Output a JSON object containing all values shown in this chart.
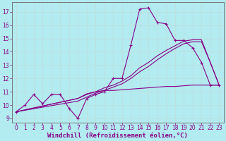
{
  "xlabel": "Windchill (Refroidissement éolien,°C)",
  "background_color": "#b2ebf0",
  "grid_color": "#c8e8e8",
  "line_color": "#880088",
  "xlim": [
    -0.5,
    23.5
  ],
  "ylim": [
    8.7,
    17.7
  ],
  "yticks": [
    9,
    10,
    11,
    12,
    13,
    14,
    15,
    16,
    17
  ],
  "xticks": [
    0,
    1,
    2,
    3,
    4,
    5,
    6,
    7,
    8,
    9,
    10,
    11,
    12,
    13,
    14,
    15,
    16,
    17,
    18,
    19,
    20,
    21,
    22,
    23
  ],
  "curve1_x": [
    0,
    1,
    2,
    3,
    4,
    5,
    6,
    7,
    8,
    9,
    10,
    11,
    12,
    13,
    14,
    15,
    16,
    17,
    18,
    19,
    20,
    21,
    22,
    23
  ],
  "curve1_y": [
    9.5,
    10.0,
    10.8,
    10.1,
    10.8,
    10.8,
    9.75,
    9.0,
    10.5,
    10.8,
    11.0,
    12.0,
    12.0,
    14.5,
    17.2,
    17.3,
    16.2,
    16.1,
    14.85,
    14.85,
    14.3,
    13.2,
    11.5,
    11.5
  ],
  "curve2_x": [
    0,
    7,
    8,
    9,
    10,
    11,
    12,
    13,
    14,
    15,
    16,
    17,
    18,
    19,
    20,
    21,
    22,
    23
  ],
  "curve2_y": [
    9.5,
    10.5,
    10.8,
    11.0,
    11.3,
    11.5,
    11.8,
    12.2,
    12.8,
    13.2,
    13.7,
    14.1,
    14.45,
    14.8,
    14.9,
    14.9,
    13.2,
    11.5
  ],
  "curve3_x": [
    0,
    7,
    8,
    9,
    10,
    11,
    12,
    13,
    14,
    15,
    16,
    17,
    18,
    19,
    20,
    21,
    22,
    23
  ],
  "curve3_y": [
    9.5,
    10.3,
    10.6,
    10.9,
    11.1,
    11.35,
    11.6,
    12.0,
    12.5,
    12.9,
    13.4,
    13.85,
    14.25,
    14.6,
    14.75,
    14.75,
    13.2,
    11.5
  ],
  "curve4_x": [
    0,
    7,
    8,
    9,
    10,
    11,
    12,
    13,
    14,
    15,
    16,
    17,
    18,
    19,
    20,
    21,
    22,
    23
  ],
  "curve4_y": [
    9.5,
    10.5,
    10.85,
    11.0,
    11.1,
    11.1,
    11.15,
    11.2,
    11.25,
    11.3,
    11.35,
    11.4,
    11.4,
    11.45,
    11.5,
    11.5,
    11.5,
    11.5
  ],
  "tick_fontsize": 5.5,
  "xlabel_fontsize": 6.5
}
